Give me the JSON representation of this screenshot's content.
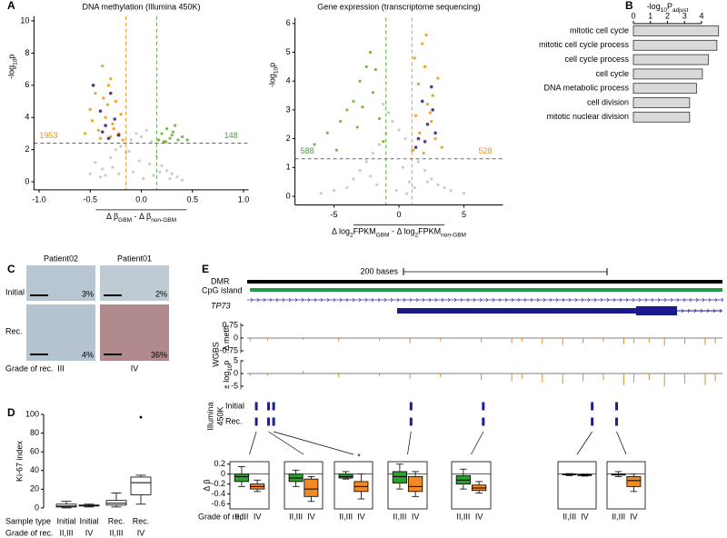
{
  "panel_labels": [
    "A",
    "B",
    "C",
    "D",
    "E"
  ],
  "chart_data": [
    {
      "type": "scatter",
      "title": "DNA methylation (Illumina 450K)",
      "x_label": [
        "Δ β",
        "GBM",
        " - Δ β",
        "non-GBM"
      ],
      "y_label": [
        "-log",
        "10",
        "p"
      ],
      "xlim": [
        -1.05,
        1.05
      ],
      "ylim": [
        -0.5,
        10.3
      ],
      "xticks": [
        {
          "value": -1,
          "label": "-1.0"
        },
        -0.5,
        {
          "value": 0,
          "label": "0.0"
        },
        0.5,
        {
          "value": 1,
          "label": "1.0"
        }
      ],
      "yticks": [
        0,
        2,
        4,
        6,
        8,
        10
      ],
      "thresholds": {
        "x": [
          -0.15,
          0.15
        ],
        "x_colors": [
          "#f0902a",
          "#5aa845"
        ],
        "y": 2.4
      },
      "annotations": [
        {
          "text": "1953",
          "color": "#f0902a"
        },
        {
          "text": "148",
          "color": "#4c9e3a"
        }
      ],
      "series": [
        {
          "color": "#cccccc",
          "x": [
            -0.45,
            -0.38,
            -0.3,
            -0.25,
            -0.2,
            -0.15,
            -0.1,
            -0.05,
            0,
            0.05,
            0.1,
            0.15,
            0.2,
            0.25,
            0.3,
            0.35,
            -0.35,
            -0.28,
            -0.12,
            -0.02,
            0.08,
            0.18,
            -0.4,
            -0.22,
            0.02,
            0.12,
            -0.08,
            0.28,
            -0.5,
            0.4
          ],
          "y": [
            1.2,
            0.8,
            1.5,
            2.0,
            2.2,
            1.8,
            2.6,
            3.0,
            2.8,
            3.2,
            2.5,
            1.6,
            1.0,
            0.7,
            0.5,
            0.3,
            0.4,
            0.9,
            1.9,
            1.3,
            1.1,
            0.6,
            0.3,
            0.5,
            0.2,
            0.4,
            0.6,
            0.2,
            0.5,
            0.1
          ]
        },
        {
          "color": "#f0a326",
          "x": [
            -0.55,
            -0.5,
            -0.45,
            -0.42,
            -0.38,
            -0.35,
            -0.32,
            -0.3,
            -0.28,
            -0.25,
            -0.22,
            -0.2,
            -0.18,
            -0.48,
            -0.4,
            -0.33,
            -0.27,
            -0.23,
            -0.37,
            -0.3
          ],
          "y": [
            3.0,
            4.5,
            5.5,
            3.2,
            7.2,
            4.0,
            6.0,
            2.8,
            3.6,
            5.0,
            3.0,
            4.2,
            2.6,
            3.8,
            2.7,
            4.8,
            3.3,
            2.9,
            5.2,
            6.4
          ]
        },
        {
          "color": "#78bb4a",
          "x": [
            0.17,
            0.2,
            0.22,
            0.25,
            0.28,
            0.3,
            0.33,
            0.36,
            0.4,
            0.24,
            0.31,
            0.45
          ],
          "y": [
            2.6,
            3.0,
            2.5,
            3.3,
            2.7,
            2.9,
            3.5,
            2.6,
            2.8,
            2.5,
            3.1,
            2.6
          ]
        },
        {
          "color": "#5b3a8c",
          "x": [
            -0.47,
            -0.4,
            -0.35,
            -0.3,
            -0.26,
            -0.22,
            -0.38,
            -0.32
          ],
          "y": [
            6.0,
            4.4,
            3.5,
            5.5,
            3.9,
            2.9,
            3.1,
            2.7
          ]
        }
      ]
    },
    {
      "type": "scatter",
      "title": "Gene expression (transcriptome sequencing)",
      "x_label": [
        "Δ log",
        "2",
        "FPKM",
        "GBM",
        " - Δ log",
        "2",
        "FPKM",
        "non-GBM"
      ],
      "y_label": [
        "-log",
        "10",
        "p"
      ],
      "xlim": [
        -8,
        8
      ],
      "ylim": [
        -0.3,
        6.2
      ],
      "xticks": [
        -5,
        0,
        5
      ],
      "yticks": [
        0,
        1,
        2,
        3,
        4,
        5,
        6
      ],
      "thresholds": {
        "x": [
          -1,
          1
        ],
        "x_colors": [
          "#5aa845",
          "#f0902a"
        ],
        "y": 1.3
      },
      "annotations": [
        {
          "text": "588",
          "color": "#4c9e3a"
        },
        {
          "text": "528",
          "color": "#f0902a"
        }
      ],
      "series": [
        {
          "color": "#cccccc",
          "x": [
            -4,
            -3.5,
            -3,
            -2.5,
            -2,
            -1.5,
            -1,
            -0.5,
            0,
            0.5,
            1,
            1.5,
            2,
            2.5,
            3,
            3.5,
            4,
            -6,
            -1.2,
            -0.8,
            0.3,
            0.8,
            -0.2,
            -2.2,
            2.2,
            5,
            -5,
            1.2,
            -1.7,
            0.6
          ],
          "y": [
            0.3,
            0.6,
            0.9,
            1.2,
            1.5,
            1.8,
            2.2,
            2.6,
            2.3,
            2.0,
            1.6,
            1.2,
            0.9,
            0.6,
            0.4,
            0.3,
            0.2,
            0.1,
            3.2,
            2.9,
            1.0,
            0.5,
            0.2,
            0.7,
            0.5,
            0.1,
            0.2,
            0.3,
            0.4,
            0.1
          ]
        },
        {
          "color": "#78bb4a",
          "x": [
            -6.5,
            -5.5,
            -4.5,
            -4,
            -3.5,
            -3,
            -2.5,
            -2,
            -1.5,
            -1.2,
            -3.2,
            -2.2,
            -4.8,
            -1.8,
            -2.8
          ],
          "y": [
            1.8,
            2.2,
            2.6,
            3.0,
            3.3,
            4.0,
            4.5,
            3.6,
            2.7,
            1.9,
            2.4,
            5.0,
            1.6,
            4.4,
            3.1
          ]
        },
        {
          "color": "#f0a326",
          "x": [
            1.1,
            1.3,
            1.5,
            1.8,
            2.0,
            2.2,
            2.5,
            2.8,
            3.0,
            3.3,
            1.6,
            2.1,
            2.6,
            1.2,
            1.9,
            2.4
          ],
          "y": [
            1.6,
            2.8,
            3.9,
            5.3,
            4.5,
            3.2,
            2.6,
            2.0,
            4.1,
            1.7,
            2.2,
            5.6,
            3.5,
            4.8,
            1.5,
            2.9
          ]
        },
        {
          "color": "#5b3a8c",
          "x": [
            1.5,
            1.8,
            2.2,
            2.5,
            2.8,
            1.3,
            2.0,
            2.6
          ],
          "y": [
            2.0,
            3.3,
            2.5,
            3.8,
            2.2,
            1.7,
            1.9,
            3.0
          ]
        }
      ]
    },
    {
      "type": "barh",
      "title": [
        "-log",
        "10",
        "P",
        "adjust"
      ],
      "categories": [
        "mitotic cell cycle",
        "mitotic cell cycle process",
        "cell cycle process",
        "cell cycle",
        "DNA metabolic process",
        "cell division",
        "mitotic nuclear division"
      ],
      "values": [
        5.0,
        4.9,
        4.4,
        4.05,
        3.7,
        3.3,
        3.3
      ],
      "color": "#d9d9d9",
      "xlim": [
        0,
        5
      ],
      "xticks": [
        0,
        1,
        2,
        3,
        4
      ]
    },
    {
      "type": "box",
      "y_label": "Ki-67 index",
      "ylim": [
        -3,
        103
      ],
      "yticks": [
        0,
        20,
        40,
        60,
        80,
        100
      ],
      "row_labels": [
        "Sample type",
        "Grade of rec."
      ],
      "rows": [
        [
          "Initial",
          "Initial",
          "Rec.",
          "Rec."
        ],
        [
          "II,III",
          "IV",
          "II,III",
          "IV"
        ]
      ],
      "boxes": [
        {
          "min": 0,
          "q1": 1,
          "median": 2,
          "q3": 4,
          "max": 7
        },
        {
          "min": 1,
          "q1": 2,
          "median": 3,
          "q3": 3,
          "max": 4
        },
        {
          "min": 1,
          "q1": 3,
          "median": 5,
          "q3": 8,
          "max": 16
        },
        {
          "min": 4,
          "q1": 14,
          "median": 27,
          "q3": 33,
          "max": 35,
          "outliers": [
            97
          ]
        }
      ]
    },
    {
      "type": "track",
      "xlim": [
        0,
        467
      ],
      "scale_bar": {
        "length": 200,
        "label": "200 bases"
      },
      "features": {
        "dmr": "DMR",
        "cpg": "CpG island",
        "gene": "TP73"
      },
      "group_label": "WGBS",
      "tracks": [
        {
          "label": [
            "Δ meth"
          ],
          "ylim": [
            -1,
            1
          ],
          "yticks": [
            0.75,
            0,
            -0.75
          ],
          "positions": [
            3,
            20,
            55,
            90,
            130,
            160,
            190,
            230,
            260,
            270,
            290,
            310,
            330,
            350,
            370,
            380,
            395,
            410,
            430,
            450,
            460
          ],
          "values": [
            -0.2,
            -0.15,
            -0.1,
            -0.2,
            -0.15,
            -0.3,
            -0.2,
            -0.25,
            -0.3,
            -0.2,
            -0.35,
            -0.4,
            -0.3,
            -0.2,
            -0.35,
            -0.3,
            -0.25,
            -0.45,
            -0.35,
            -0.4,
            -0.3
          ]
        },
        {
          "label": [
            "± log",
            "10",
            "p"
          ],
          "ylim": [
            -7,
            6
          ],
          "yticks": [
            5,
            0,
            -5
          ],
          "positions": [
            3,
            20,
            55,
            90,
            130,
            160,
            190,
            230,
            260,
            270,
            290,
            310,
            330,
            350,
            370,
            380,
            395,
            410,
            430,
            450,
            460
          ],
          "values": [
            -1,
            -0.8,
            1,
            -1.5,
            -1,
            -2,
            -1.5,
            -2.5,
            -3,
            -2,
            -3.5,
            -4,
            -3,
            -2.5,
            -4.5,
            -3.5,
            -2.5,
            -5,
            -4,
            -4.5,
            -3
          ]
        }
      ],
      "probes": {
        "label": [
          "Illumina",
          "450K"
        ],
        "rows": [
          "Initial",
          "Rec."
        ],
        "positions": [
          9,
          21,
          26,
          161,
          232,
          339,
          363
        ],
        "color": "#1f1f8f"
      }
    },
    {
      "type": "box_group",
      "y_label": "Δ β",
      "ylim": [
        -0.7,
        0.25
      ],
      "yticks": [
        0.2,
        0,
        -0.2,
        -0.4,
        -0.6
      ],
      "colors": [
        "#2e9e2e",
        "#f08a24"
      ],
      "group_labels": [
        "II,III",
        "IV"
      ],
      "x_label": "Grade of rec.",
      "panels": [
        {
          "boxes": [
            {
              "min": -0.25,
              "q1": -0.15,
              "median": -0.05,
              "q3": 0.0,
              "max": 0.15
            },
            {
              "min": -0.35,
              "q1": -0.3,
              "median": -0.25,
              "q3": -0.2,
              "max": -0.12
            }
          ]
        },
        {
          "boxes": [
            {
              "min": -0.25,
              "q1": -0.15,
              "median": -0.08,
              "q3": 0.0,
              "max": 0.08
            },
            {
              "min": -0.55,
              "q1": -0.45,
              "median": -0.3,
              "q3": -0.1,
              "max": -0.05
            }
          ]
        },
        {
          "boxes": [
            {
              "min": -0.1,
              "q1": -0.08,
              "median": -0.05,
              "q3": 0.0,
              "max": 0.05
            },
            {
              "min": -0.5,
              "q1": -0.35,
              "median": -0.25,
              "q3": -0.15,
              "max": 0.0
            }
          ],
          "annotation": "*"
        },
        {
          "boxes": [
            {
              "min": -0.3,
              "q1": -0.18,
              "median": -0.05,
              "q3": 0.05,
              "max": 0.2
            },
            {
              "min": -0.45,
              "q1": -0.35,
              "median": -0.25,
              "q3": -0.05,
              "max": 0.05
            }
          ]
        },
        {
          "boxes": [
            {
              "min": -0.3,
              "q1": -0.2,
              "median": -0.12,
              "q3": -0.03,
              "max": 0.1
            },
            {
              "min": -0.38,
              "q1": -0.33,
              "median": -0.28,
              "q3": -0.22,
              "max": -0.15
            }
          ]
        },
        {
          "boxes": [
            {
              "min": -0.03,
              "q1": -0.01,
              "median": 0,
              "q3": 0,
              "max": 0.01
            },
            {
              "min": -0.04,
              "q1": -0.03,
              "median": -0.02,
              "q3": -0.01,
              "max": 0.0
            }
          ]
        },
        {
          "boxes": [
            {
              "min": -0.05,
              "q1": -0.02,
              "median": 0,
              "q3": 0,
              "max": 0.05
            },
            {
              "min": -0.35,
              "q1": -0.25,
              "median": -0.13,
              "q3": -0.05,
              "max": 0.0
            }
          ]
        }
      ]
    }
  ],
  "panel_c": {
    "columns": [
      "Patient02",
      "Patient01"
    ],
    "rows": [
      "Initial",
      "Rec."
    ],
    "percent_labels": [
      [
        "3%",
        "2%"
      ],
      [
        "4%",
        "36%"
      ]
    ],
    "grade_label": "Grade of rec.",
    "grades": [
      "III",
      "IV"
    ]
  }
}
